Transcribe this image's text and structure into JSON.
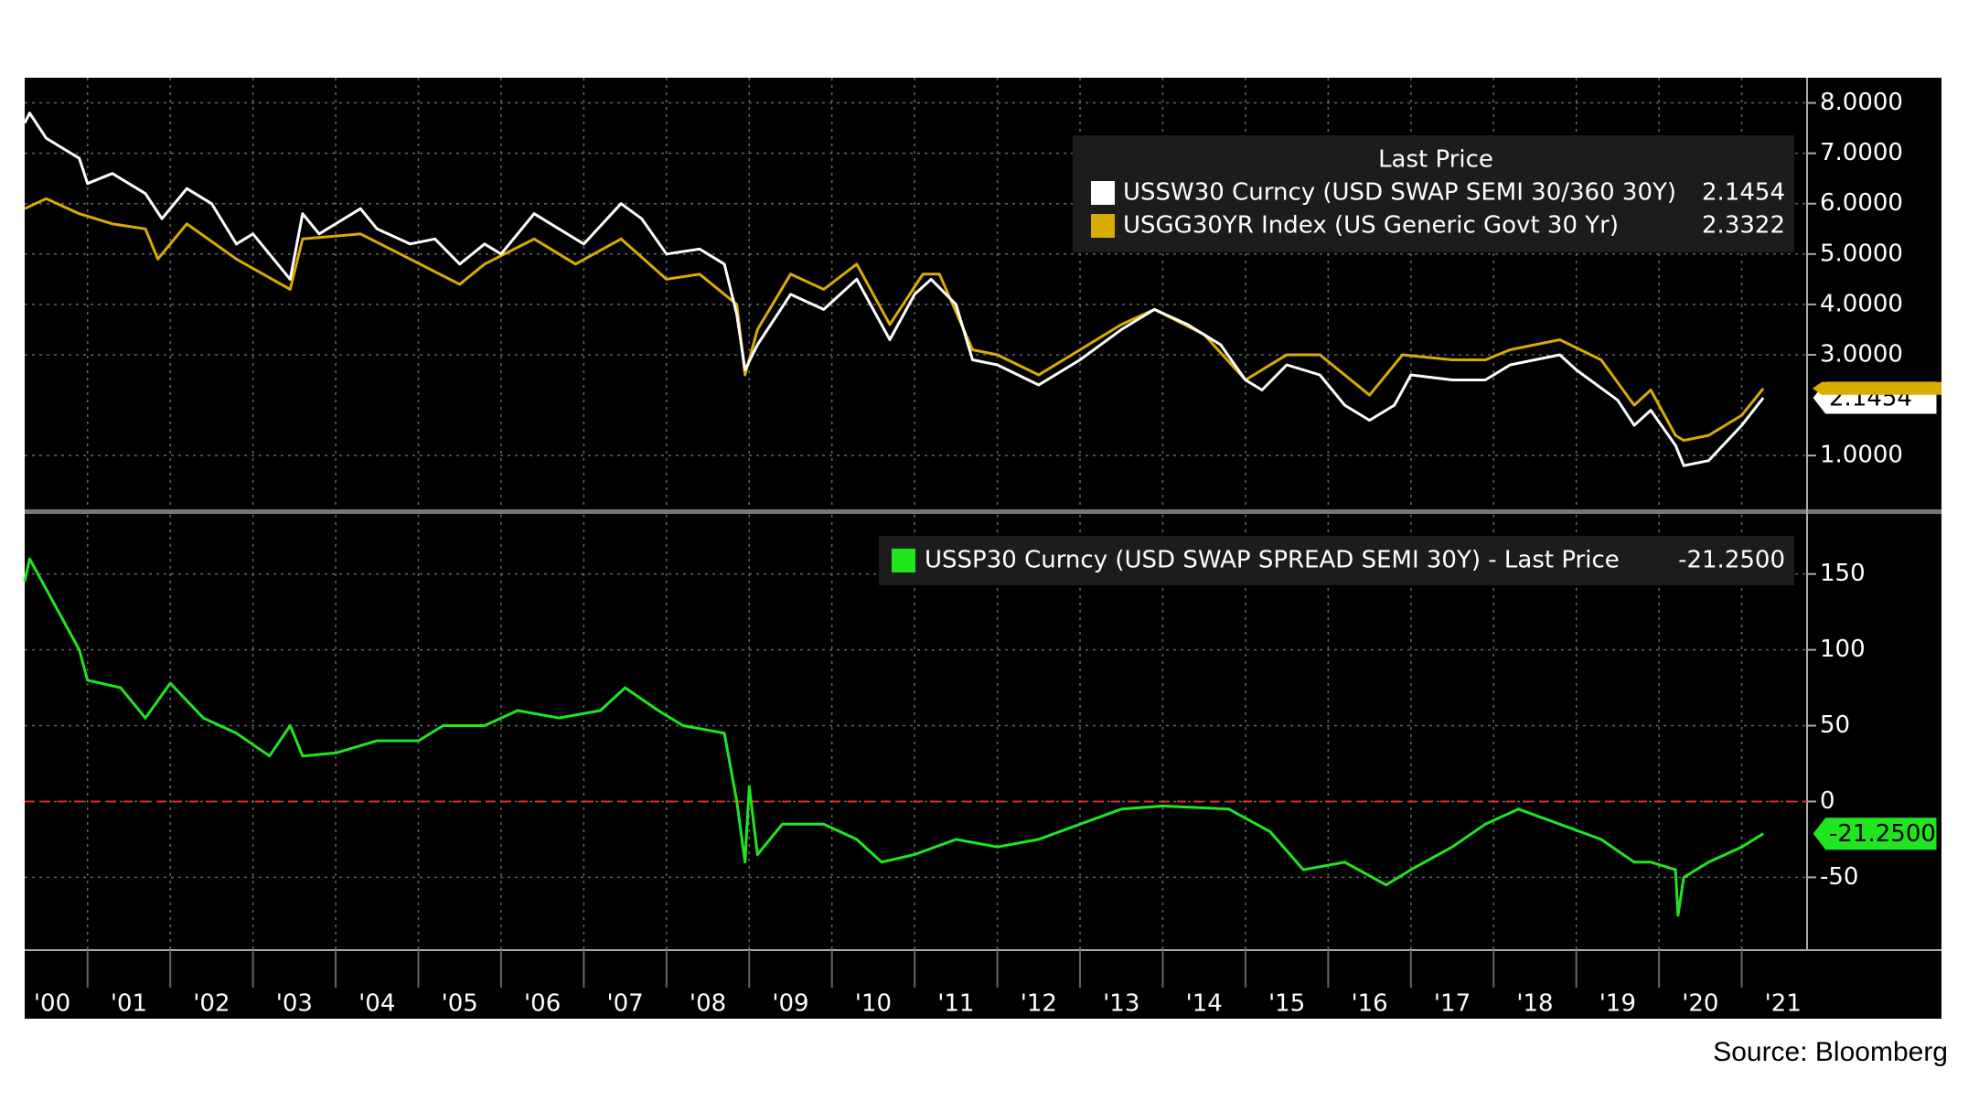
{
  "chart_data": [
    {
      "type": "line",
      "legend_title": "Last Price",
      "ylim": [
        -0.05,
        8.5
      ],
      "yticks": [
        {
          "value": 1,
          "label": "1.0000"
        },
        {
          "value": 3,
          "label": "3.0000"
        },
        {
          "value": 4,
          "label": "4.0000"
        },
        {
          "value": 5,
          "label": "5.0000"
        },
        {
          "value": 6,
          "label": "6.0000"
        },
        {
          "value": 7,
          "label": "7.0000"
        },
        {
          "value": 8,
          "label": "8.0000"
        }
      ],
      "grid": true,
      "series": [
        {
          "name": "USSW30 Curncy (USD SWAP SEMI 30/360 30Y)",
          "color": "#ffffff",
          "last_value": 2.1454,
          "x": [
            2000.24,
            2000.3,
            2000.5,
            2000.9,
            2001.0,
            2001.3,
            2001.7,
            2001.9,
            2002.2,
            2002.5,
            2002.8,
            2003.0,
            2003.45,
            2003.6,
            2003.8,
            2004.3,
            2004.5,
            2004.9,
            2005.2,
            2005.5,
            2005.8,
            2006.0,
            2006.4,
            2006.7,
            2007.0,
            2007.45,
            2007.7,
            2008.0,
            2008.4,
            2008.7,
            2008.85,
            2008.95,
            2009.1,
            2009.5,
            2009.9,
            2010.3,
            2010.7,
            2011.0,
            2011.2,
            2011.5,
            2011.7,
            2012.0,
            2012.5,
            2012.8,
            2013.0,
            2013.5,
            2013.9,
            2014.3,
            2014.7,
            2015.0,
            2015.2,
            2015.5,
            2015.9,
            2016.2,
            2016.5,
            2016.8,
            2017.0,
            2017.5,
            2017.9,
            2018.2,
            2018.8,
            2019.0,
            2019.5,
            2019.7,
            2019.9,
            2020.2,
            2020.3,
            2020.6,
            2021.0,
            2021.26
          ],
          "values": [
            7.6,
            7.8,
            7.3,
            6.9,
            6.4,
            6.6,
            6.2,
            5.7,
            6.3,
            6.0,
            5.2,
            5.4,
            4.5,
            5.8,
            5.4,
            5.9,
            5.5,
            5.2,
            5.3,
            4.8,
            5.2,
            5.0,
            5.8,
            5.5,
            5.2,
            6.0,
            5.7,
            5.0,
            5.1,
            4.8,
            3.8,
            2.7,
            3.2,
            4.2,
            3.9,
            4.5,
            3.3,
            4.2,
            4.5,
            4.0,
            2.9,
            2.8,
            2.4,
            2.7,
            2.9,
            3.5,
            3.9,
            3.6,
            3.2,
            2.5,
            2.3,
            2.8,
            2.6,
            2.0,
            1.7,
            2.0,
            2.6,
            2.5,
            2.5,
            2.8,
            3.0,
            2.7,
            2.1,
            1.6,
            1.9,
            1.2,
            0.8,
            0.9,
            1.6,
            2.1454
          ]
        },
        {
          "name": "USGG30YR Index (US Generic Govt 30 Yr)",
          "color": "#d9ac00",
          "last_value": 2.3322,
          "x": [
            2000.24,
            2000.5,
            2000.9,
            2001.3,
            2001.7,
            2001.85,
            2002.2,
            2002.8,
            2003.45,
            2003.6,
            2004.3,
            2004.9,
            2005.5,
            2005.8,
            2006.4,
            2006.9,
            2007.45,
            2008.0,
            2008.4,
            2008.85,
            2008.95,
            2009.1,
            2009.5,
            2009.9,
            2010.3,
            2010.7,
            2011.1,
            2011.3,
            2011.7,
            2012.0,
            2012.5,
            2012.8,
            2013.0,
            2013.5,
            2013.9,
            2014.5,
            2015.0,
            2015.5,
            2015.9,
            2016.5,
            2016.9,
            2017.5,
            2017.9,
            2018.2,
            2018.8,
            2019.3,
            2019.7,
            2019.9,
            2020.2,
            2020.3,
            2020.6,
            2021.0,
            2021.26
          ],
          "values": [
            5.9,
            6.1,
            5.8,
            5.6,
            5.5,
            4.9,
            5.6,
            4.9,
            4.3,
            5.3,
            5.4,
            4.9,
            4.4,
            4.8,
            5.3,
            4.8,
            5.3,
            4.5,
            4.6,
            4.0,
            2.6,
            3.5,
            4.6,
            4.3,
            4.8,
            3.6,
            4.6,
            4.6,
            3.1,
            3.0,
            2.6,
            2.9,
            3.1,
            3.6,
            3.9,
            3.4,
            2.5,
            3.0,
            3.0,
            2.2,
            3.0,
            2.9,
            2.9,
            3.1,
            3.3,
            2.9,
            2.0,
            2.3,
            1.4,
            1.3,
            1.4,
            1.8,
            2.3322
          ]
        }
      ]
    },
    {
      "type": "line",
      "xlim": [
        2000.24,
        2021.79
      ],
      "xticks": [
        {
          "value": 2000,
          "label": "'00"
        },
        {
          "value": 2001,
          "label": "'01"
        },
        {
          "value": 2002,
          "label": "'02"
        },
        {
          "value": 2003,
          "label": "'03"
        },
        {
          "value": 2004,
          "label": "'04"
        },
        {
          "value": 2005,
          "label": "'05"
        },
        {
          "value": 2006,
          "label": "'06"
        },
        {
          "value": 2007,
          "label": "'07"
        },
        {
          "value": 2008,
          "label": "'08"
        },
        {
          "value": 2009,
          "label": "'09"
        },
        {
          "value": 2010,
          "label": "'10"
        },
        {
          "value": 2011,
          "label": "'11"
        },
        {
          "value": 2012,
          "label": "'12"
        },
        {
          "value": 2013,
          "label": "'13"
        },
        {
          "value": 2014,
          "label": "'14"
        },
        {
          "value": 2015,
          "label": "'15"
        },
        {
          "value": 2016,
          "label": "'16"
        },
        {
          "value": 2017,
          "label": "'17"
        },
        {
          "value": 2018,
          "label": "'18"
        },
        {
          "value": 2019,
          "label": "'19"
        },
        {
          "value": 2020,
          "label": "'20"
        },
        {
          "value": 2021,
          "label": "'21"
        }
      ],
      "ylim": [
        -98,
        189
      ],
      "yticks": [
        -50,
        0,
        50,
        100,
        150
      ],
      "grid": true,
      "reference_line": 0,
      "reference_color": "#e0282e",
      "series": [
        {
          "name": "USSP30 Curncy (USD SWAP SPREAD SEMI 30Y) - Last Price",
          "color": "#1fe61f",
          "last_value": -21.25,
          "last_value_label": "-21.2500",
          "x": [
            2000.24,
            2000.3,
            2000.6,
            2000.9,
            2001.0,
            2001.4,
            2001.7,
            2002.0,
            2002.4,
            2002.8,
            2003.2,
            2003.45,
            2003.6,
            2004.0,
            2004.5,
            2005.0,
            2005.3,
            2005.8,
            2006.2,
            2006.7,
            2007.2,
            2007.5,
            2007.9,
            2008.2,
            2008.7,
            2008.85,
            2008.95,
            2009.0,
            2009.1,
            2009.4,
            2009.9,
            2010.3,
            2010.6,
            2011.0,
            2011.5,
            2012.0,
            2012.5,
            2013.0,
            2013.5,
            2014.0,
            2014.8,
            2015.3,
            2015.7,
            2016.2,
            2016.7,
            2017.0,
            2017.5,
            2017.9,
            2018.3,
            2018.8,
            2019.3,
            2019.7,
            2019.9,
            2020.2,
            2020.23,
            2020.3,
            2020.6,
            2021.0,
            2021.26
          ],
          "values": [
            145,
            160,
            130,
            100,
            80,
            75,
            55,
            78,
            55,
            45,
            30,
            50,
            30,
            32,
            40,
            40,
            50,
            50,
            60,
            55,
            60,
            75,
            60,
            50,
            45,
            0,
            -40,
            10,
            -35,
            -15,
            -15,
            -25,
            -40,
            -35,
            -25,
            -30,
            -25,
            -15,
            -5,
            -3,
            -5,
            -20,
            -45,
            -40,
            -55,
            -45,
            -30,
            -15,
            -5,
            -15,
            -25,
            -40,
            -40,
            -45,
            -75,
            -50,
            -40,
            -30,
            -21.25
          ]
        }
      ]
    }
  ],
  "source": "Source: Bloomberg"
}
